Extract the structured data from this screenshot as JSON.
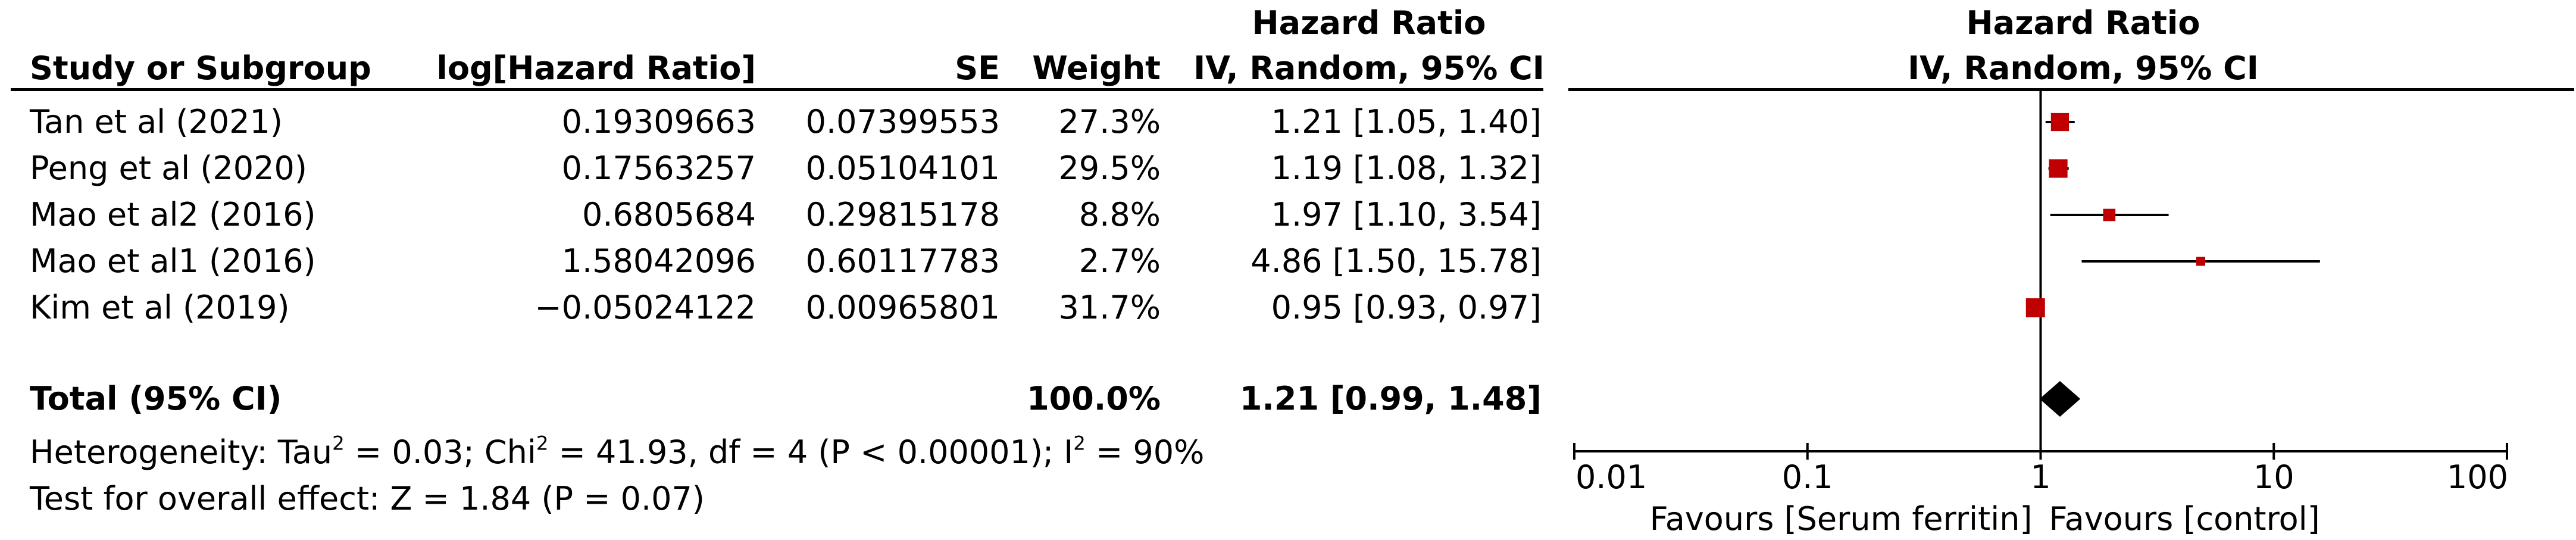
{
  "headers": {
    "study": "Study or Subgroup",
    "logHR": "log[Hazard Ratio]",
    "se": "SE",
    "weight": "Weight",
    "hr_line1": "Hazard Ratio",
    "hr_line2": "IV, Random, 95% CI",
    "plot_line1": "Hazard Ratio",
    "plot_line2": "IV, Random, 95% CI"
  },
  "studies": [
    {
      "name": "Tan et al (2021)",
      "logHR": "0.19309663",
      "se": "0.07399553",
      "weight": "27.3%",
      "ci": "1.21 [1.05, 1.40]"
    },
    {
      "name": "Peng et al (2020)",
      "logHR": "0.17563257",
      "se": "0.05104101",
      "weight": "29.5%",
      "ci": "1.19 [1.08, 1.32]"
    },
    {
      "name": "Mao et al2 (2016)",
      "logHR": "0.6805684",
      "se": "0.29815178",
      "weight": "8.8%",
      "ci": "1.97 [1.10, 3.54]"
    },
    {
      "name": "Mao et al1 (2016)",
      "logHR": "1.58042096",
      "se": "0.60117783",
      "weight": "2.7%",
      "ci": "4.86 [1.50, 15.78]"
    },
    {
      "name": "Kim et al (2019)",
      "logHR": "−0.05024122",
      "se": "0.00965801",
      "weight": "31.7%",
      "ci": "0.95 [0.93, 0.97]"
    }
  ],
  "total": {
    "label": "Total (95% CI)",
    "weight": "100.0%",
    "ci": "1.21 [0.99, 1.48]"
  },
  "heterogeneity": {
    "prefix": "Heterogeneity: Tau",
    "tau_sup": "2",
    "tau_val": " = 0.03; Chi",
    "chi_sup": "2",
    "chi_val": " = 41.93, df = 4 (P < 0.00001); I",
    "i_sup": "2",
    "i_val": " = 90%"
  },
  "overall_effect": "Test for overall effect: Z = 1.84 (P = 0.07)",
  "favours_left": "Favours [Serum ferritin]",
  "favours_right": "Favours [control]",
  "chart_data": {
    "type": "forest",
    "x_scale": "log",
    "xlim": [
      0.01,
      100
    ],
    "x_ticks": [
      0.01,
      0.1,
      1,
      10,
      100
    ],
    "x_tick_labels": [
      "0.01",
      "0.1",
      "1",
      "10",
      "100"
    ],
    "reference_line": 1,
    "colors": {
      "study_marker": "#c00000",
      "summary_diamond": "#000000"
    },
    "studies": [
      {
        "hr": 1.21,
        "lower": 1.05,
        "upper": 1.4,
        "weight": 27.3
      },
      {
        "hr": 1.19,
        "lower": 1.08,
        "upper": 1.32,
        "weight": 29.5
      },
      {
        "hr": 1.97,
        "lower": 1.1,
        "upper": 3.54,
        "weight": 8.8
      },
      {
        "hr": 4.86,
        "lower": 1.5,
        "upper": 15.78,
        "weight": 2.7
      },
      {
        "hr": 0.95,
        "lower": 0.93,
        "upper": 0.97,
        "weight": 31.7
      }
    ],
    "summary": {
      "hr": 1.21,
      "lower": 0.99,
      "upper": 1.48
    }
  }
}
